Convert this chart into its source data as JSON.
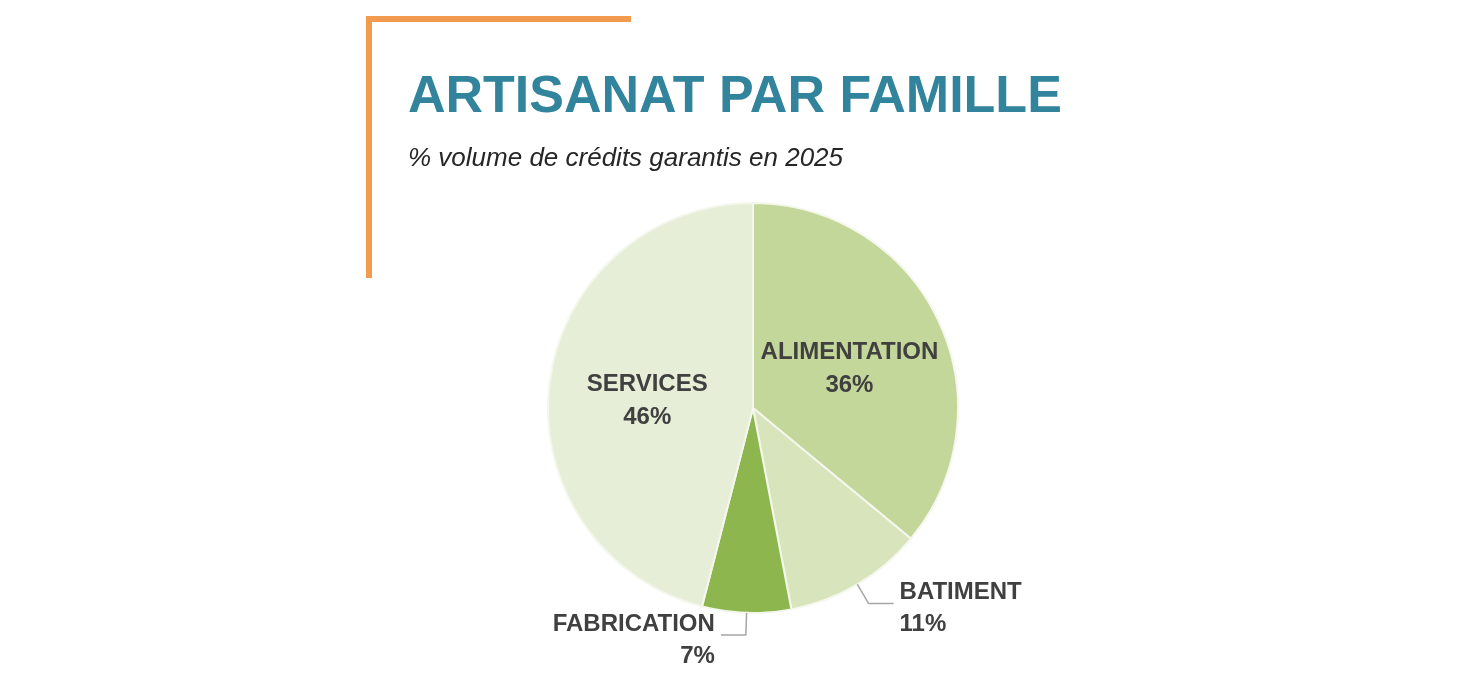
{
  "chart_data": {
    "type": "pie",
    "title": "ARTISANAT PAR FAMILLE",
    "subtitle": "% volume de crédits garantis en 2025",
    "categories": [
      "ALIMENTATION",
      "BATIMENT",
      "FABRICATION",
      "SERVICES"
    ],
    "values": [
      36,
      11,
      7,
      46
    ],
    "colors": [
      "#c4d79b",
      "#d8e4bc",
      "#8db64e",
      "#e6eed8"
    ],
    "value_labels": [
      "36%",
      "11%",
      "7%",
      "46%"
    ]
  }
}
